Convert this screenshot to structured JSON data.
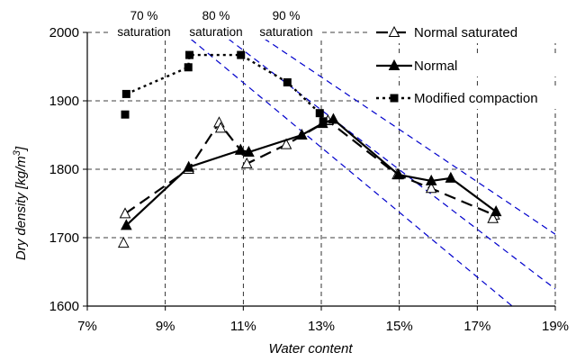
{
  "chart_data": {
    "type": "line",
    "xlabel": "Water content",
    "ylabel": "Dry density [kg/m³]",
    "ylabel_prefix": "Dry density [kg/m",
    "ylabel_sup": "3",
    "ylabel_suffix": "]",
    "xlim": [
      7,
      19
    ],
    "ylim": [
      1600,
      2000
    ],
    "x_ticks": [
      7,
      9,
      11,
      13,
      15,
      17,
      19
    ],
    "x_tick_labels": [
      "7%",
      "9%",
      "11%",
      "13%",
      "15%",
      "17%",
      "19%"
    ],
    "y_ticks": [
      1600,
      1700,
      1800,
      1900,
      2000
    ],
    "y_tick_labels": [
      "1600",
      "1700",
      "1800",
      "1900",
      "2000"
    ],
    "grid": true,
    "legend_position": "top-right",
    "series": [
      {
        "name": "Normal saturated",
        "line": "long-dash",
        "marker": "open-triangle",
        "color": "#000000",
        "x": [
          7.97,
          9.6,
          10.38,
          10.93,
          11.09,
          12.1,
          13.17,
          14.95,
          15.82,
          17.44
        ],
        "y": [
          1735,
          1800,
          1868,
          1828,
          1808,
          1836,
          1871,
          1792,
          1772,
          1733
        ],
        "extra_markers": [
          [
            7.93,
            1692
          ],
          [
            10.42,
            1860
          ],
          [
            17.4,
            1728
          ]
        ]
      },
      {
        "name": "Normal",
        "line": "solid",
        "marker": "filled-triangle",
        "color": "#000000",
        "x": [
          8.0,
          9.6,
          10.93,
          11.14,
          12.5,
          13.03,
          13.31,
          14.98,
          15.82,
          16.32,
          17.48
        ],
        "y": [
          1718,
          1803,
          1828,
          1825,
          1850,
          1867,
          1873,
          1792,
          1783,
          1787,
          1738
        ]
      },
      {
        "name": "Modified compaction",
        "line": "dotted",
        "marker": "filled-square",
        "color": "#000000",
        "x": [
          8.0,
          9.59,
          9.62,
          10.94,
          12.13,
          12.96,
          13.05
        ],
        "y": [
          1910,
          1949,
          1967,
          1967,
          1927,
          1882,
          1870
        ],
        "extra_markers": [
          [
            7.97,
            1880
          ]
        ]
      }
    ],
    "saturation_lines": [
      {
        "label_top": "70 %",
        "label_bottom": "saturation",
        "color": "#0000cc",
        "x": [
          9.45,
          18.0
        ],
        "y": [
          2000,
          1595
        ]
      },
      {
        "label_top": "80 %",
        "label_bottom": "saturation",
        "color": "#0000cc",
        "x": [
          10.4,
          19.0
        ],
        "y": [
          2000,
          1625
        ]
      },
      {
        "label_top": "90 %",
        "label_bottom": "saturation",
        "color": "#0000cc",
        "x": [
          11.3,
          19.0
        ],
        "y": [
          2000,
          1705
        ]
      }
    ]
  }
}
